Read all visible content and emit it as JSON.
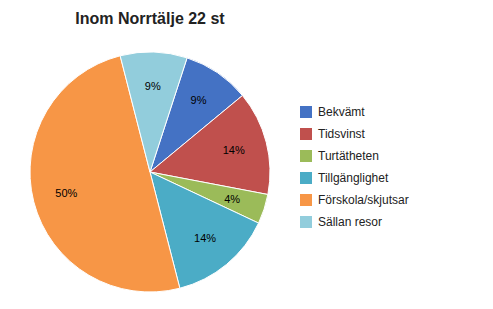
{
  "chart_data": {
    "type": "pie",
    "title": "Inom Norrtälje 22 st",
    "categories": [
      "Bekvämt",
      "Tidsvinst",
      "Turtätheten",
      "Tillgänglighet",
      "Förskola/skjutsar",
      "Sällan resor"
    ],
    "values": [
      9,
      14,
      4,
      14,
      50,
      9
    ],
    "value_labels": [
      "9%",
      "14%",
      "4%",
      "14%",
      "50%",
      "9%"
    ],
    "colors": [
      "#4472C4",
      "#C0504D",
      "#9BBB59",
      "#4BACC6",
      "#F79646",
      "#92CDDC"
    ],
    "data_labels": true,
    "legend": "right"
  }
}
